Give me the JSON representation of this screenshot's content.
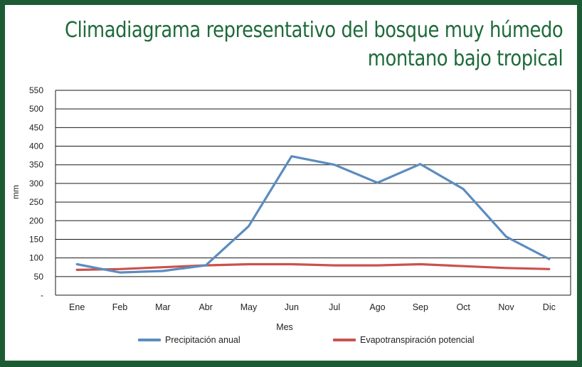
{
  "chart_data": {
    "type": "line",
    "title_lines": [
      "Climadiagrama representativo del bosque muy húmedo",
      "montano bajo tropical"
    ],
    "xlabel": "Mes",
    "ylabel": "mm",
    "categories": [
      "Ene",
      "Feb",
      "Mar",
      "Abr",
      "May",
      "Jun",
      "Jul",
      "Ago",
      "Sep",
      "Oct",
      "Nov",
      "Dic"
    ],
    "y_ticks": [
      "-",
      "50",
      "100",
      "150",
      "200",
      "250",
      "300",
      "350",
      "400",
      "450",
      "500",
      "550"
    ],
    "ylim": [
      0,
      550
    ],
    "grid": true,
    "legend_position": "bottom",
    "series": [
      {
        "name": "Precipitación anual",
        "color": "#5b8cc0",
        "values": [
          83,
          61,
          65,
          80,
          185,
          373,
          350,
          302,
          352,
          285,
          157,
          97
        ]
      },
      {
        "name": "Evapotranspiración potencial",
        "color": "#c9524f",
        "values": [
          68,
          70,
          75,
          80,
          83,
          83,
          80,
          80,
          83,
          78,
          73,
          70
        ]
      }
    ]
  }
}
